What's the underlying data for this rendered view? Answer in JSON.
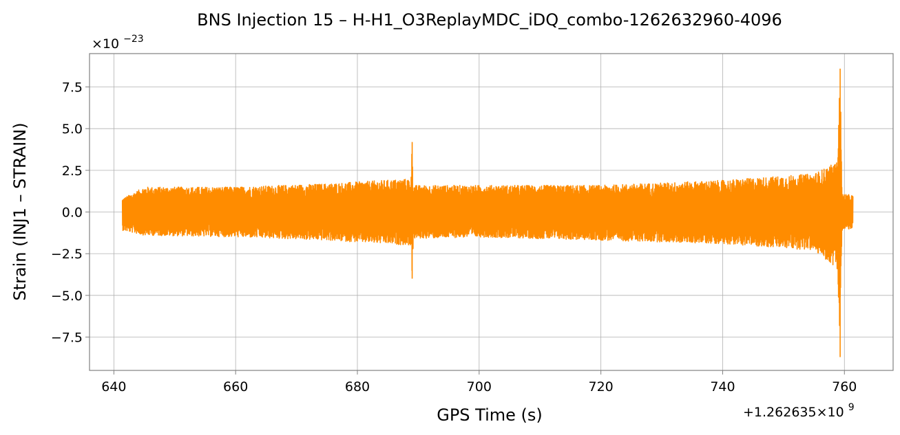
{
  "chart_data": {
    "type": "line",
    "title": "BNS Injection 15 – H-H1_O3ReplayMDC_iDQ_combo-1262632960-4096",
    "xlabel": "GPS Time (s)",
    "ylabel": "Strain (INJ1 – STRAIN)",
    "x_offset_label": "+1.262635×10",
    "x_offset_exponent": "9",
    "y_scale_label": "×10",
    "y_scale_exponent": "−23",
    "xlim": [
      636,
      768
    ],
    "ylim": [
      -9.5,
      9.5
    ],
    "x_ticks": [
      640,
      660,
      680,
      700,
      720,
      740,
      760
    ],
    "x_tick_labels": [
      "640",
      "660",
      "680",
      "700",
      "720",
      "740",
      "760"
    ],
    "y_ticks": [
      -7.5,
      -5.0,
      -2.5,
      0.0,
      2.5,
      5.0,
      7.5
    ],
    "y_tick_labels": [
      "−7.5",
      "−5.0",
      "−2.5",
      "0.0",
      "2.5",
      "5.0",
      "7.5"
    ],
    "grid": true,
    "series": [
      {
        "color": "#ff8c00",
        "x_range": [
          641.4,
          761.4
        ],
        "envelope": [
          {
            "x": 641.4,
            "upper": 0.8,
            "lower": -1.1
          },
          {
            "x": 645,
            "upper": 1.5,
            "lower": -1.4
          },
          {
            "x": 660,
            "upper": 1.5,
            "lower": -1.5
          },
          {
            "x": 675,
            "upper": 1.7,
            "lower": -1.7
          },
          {
            "x": 688.8,
            "upper": 2.0,
            "lower": -2.0
          },
          {
            "x": 689.0,
            "upper": 4.2,
            "lower": -4.0
          },
          {
            "x": 689.2,
            "upper": 1.6,
            "lower": -1.6
          },
          {
            "x": 700,
            "upper": 1.6,
            "lower": -1.5
          },
          {
            "x": 720,
            "upper": 1.6,
            "lower": -1.7
          },
          {
            "x": 740,
            "upper": 1.9,
            "lower": -1.9
          },
          {
            "x": 755,
            "upper": 2.3,
            "lower": -2.3
          },
          {
            "x": 758.8,
            "upper": 3.0,
            "lower": -3.4
          },
          {
            "x": 759.3,
            "upper": 8.6,
            "lower": -8.7
          },
          {
            "x": 759.6,
            "upper": 1.1,
            "lower": -1.1
          },
          {
            "x": 761.4,
            "upper": 1.0,
            "lower": -1.0
          }
        ]
      }
    ]
  }
}
